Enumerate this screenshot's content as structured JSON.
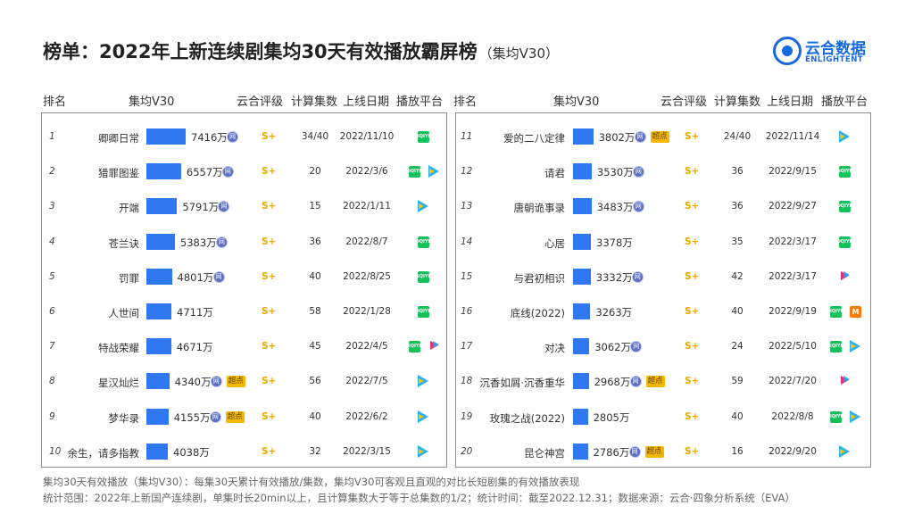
{
  "title": "榜单：2022年上新连续剧集均30天有效播放霸屏榜",
  "subtitle": "（集均V30）",
  "logo": {
    "cn": "云合数据",
    "en": "ENLIGHTENT"
  },
  "headers": {
    "rank": "排名",
    "v30": "集均V30",
    "rating": "云合评级",
    "eps": "计算集数",
    "date": "上线日期",
    "platform": "播放平台"
  },
  "badges": {
    "wang": "网",
    "chaodian": "超点"
  },
  "platform_names": {
    "iqiyi": "iQIYI",
    "mango": "M"
  },
  "chart_data": {
    "type": "bar",
    "value_unit": "万",
    "xlim": [
      0,
      7416
    ],
    "rows": [
      {
        "rank": "1",
        "title": "卿卿日常",
        "v30": 7416,
        "label": "7416万",
        "wang": true,
        "chaodian": false,
        "rating": "S+",
        "eps": "34/40",
        "date": "2022/11/10",
        "platforms": [
          "iqiyi"
        ]
      },
      {
        "rank": "2",
        "title": "猎罪图鉴",
        "v30": 6557,
        "label": "6557万",
        "wang": true,
        "chaodian": false,
        "rating": "S+",
        "eps": "20",
        "date": "2022/3/6",
        "platforms": [
          "iqiyi",
          "tencent"
        ]
      },
      {
        "rank": "3",
        "title": "开端",
        "v30": 5791,
        "label": "5791万",
        "wang": true,
        "chaodian": false,
        "rating": "S+",
        "eps": "15",
        "date": "2022/1/11",
        "platforms": [
          "tencent"
        ]
      },
      {
        "rank": "4",
        "title": "苍兰诀",
        "v30": 5383,
        "label": "5383万",
        "wang": true,
        "chaodian": false,
        "rating": "S+",
        "eps": "36",
        "date": "2022/8/7",
        "platforms": [
          "iqiyi"
        ]
      },
      {
        "rank": "5",
        "title": "罚罪",
        "v30": 4801,
        "label": "4801万",
        "wang": true,
        "chaodian": false,
        "rating": "S+",
        "eps": "40",
        "date": "2022/8/25",
        "platforms": [
          "iqiyi"
        ]
      },
      {
        "rank": "6",
        "title": "人世间",
        "v30": 4711,
        "label": "4711万",
        "wang": false,
        "chaodian": false,
        "rating": "S+",
        "eps": "58",
        "date": "2022/1/28",
        "platforms": [
          "iqiyi"
        ]
      },
      {
        "rank": "7",
        "title": "特战荣耀",
        "v30": 4671,
        "label": "4671万",
        "wang": false,
        "chaodian": false,
        "rating": "S+",
        "eps": "45",
        "date": "2022/4/5",
        "platforms": [
          "iqiyi",
          "youku"
        ]
      },
      {
        "rank": "8",
        "title": "星汉灿烂",
        "v30": 4340,
        "label": "4340万",
        "wang": true,
        "chaodian": true,
        "rating": "S+",
        "eps": "56",
        "date": "2022/7/5",
        "platforms": [
          "tencent"
        ]
      },
      {
        "rank": "9",
        "title": "梦华录",
        "v30": 4155,
        "label": "4155万",
        "wang": true,
        "chaodian": true,
        "rating": "S+",
        "eps": "40",
        "date": "2022/6/2",
        "platforms": [
          "tencent"
        ]
      },
      {
        "rank": "10",
        "title": "余生，请多指教",
        "v30": 4038,
        "label": "4038万",
        "wang": false,
        "chaodian": false,
        "rating": "S+",
        "eps": "32",
        "date": "2022/3/15",
        "platforms": [
          "tencent"
        ]
      },
      {
        "rank": "11",
        "title": "爱的二八定律",
        "v30": 3802,
        "label": "3802万",
        "wang": true,
        "chaodian": true,
        "rating": "S+",
        "eps": "24/40",
        "date": "2022/11/14",
        "platforms": [
          "tencent"
        ]
      },
      {
        "rank": "12",
        "title": "请君",
        "v30": 3530,
        "label": "3530万",
        "wang": true,
        "chaodian": false,
        "rating": "S+",
        "eps": "36",
        "date": "2022/9/15",
        "platforms": [
          "iqiyi"
        ]
      },
      {
        "rank": "13",
        "title": "唐朝诡事录",
        "v30": 3483,
        "label": "3483万",
        "wang": true,
        "chaodian": false,
        "rating": "S+",
        "eps": "36",
        "date": "2022/9/27",
        "platforms": [
          "iqiyi"
        ]
      },
      {
        "rank": "14",
        "title": "心居",
        "v30": 3378,
        "label": "3378万",
        "wang": false,
        "chaodian": false,
        "rating": "S+",
        "eps": "35",
        "date": "2022/3/17",
        "platforms": [
          "iqiyi"
        ]
      },
      {
        "rank": "15",
        "title": "与君初相识",
        "v30": 3332,
        "label": "3332万",
        "wang": true,
        "chaodian": false,
        "rating": "S+",
        "eps": "42",
        "date": "2022/3/17",
        "platforms": [
          "youku"
        ]
      },
      {
        "rank": "16",
        "title": "底线(2022)",
        "v30": 3263,
        "label": "3263万",
        "wang": false,
        "chaodian": false,
        "rating": "S+",
        "eps": "40",
        "date": "2022/9/19",
        "platforms": [
          "iqiyi",
          "mango"
        ]
      },
      {
        "rank": "17",
        "title": "对决",
        "v30": 3062,
        "label": "3062万",
        "wang": true,
        "chaodian": false,
        "rating": "S+",
        "eps": "24",
        "date": "2022/5/10",
        "platforms": [
          "iqiyi",
          "tencent"
        ]
      },
      {
        "rank": "18",
        "title": "沉香如屑·沉香重华",
        "v30": 2968,
        "label": "2968万",
        "wang": true,
        "chaodian": true,
        "rating": "S+",
        "eps": "59",
        "date": "2022/7/20",
        "platforms": [
          "youku"
        ]
      },
      {
        "rank": "19",
        "title": "玫瑰之战(2022)",
        "v30": 2805,
        "label": "2805万",
        "wang": false,
        "chaodian": false,
        "rating": "S+",
        "eps": "40",
        "date": "2022/8/8",
        "platforms": [
          "iqiyi",
          "tencent"
        ]
      },
      {
        "rank": "20",
        "title": "昆仑神宫",
        "v30": 2786,
        "label": "2786万",
        "wang": true,
        "chaodian": true,
        "rating": "S+",
        "eps": "16",
        "date": "2022/9/20",
        "platforms": [
          "tencent"
        ]
      }
    ]
  },
  "footnotes": [
    "集均30天有效播放（集均V30）：每集30天累计有效播放/集数，集均V30可客观且直观的对比长短剧集的有效播放表现",
    "统计范围：2022年上新国产连续剧，单集时长20min以上，且计算集数大于等于总集数的1/2；统计时间：截至2022.12.31；数据来源：云合·四象分析系统（EVA）"
  ]
}
